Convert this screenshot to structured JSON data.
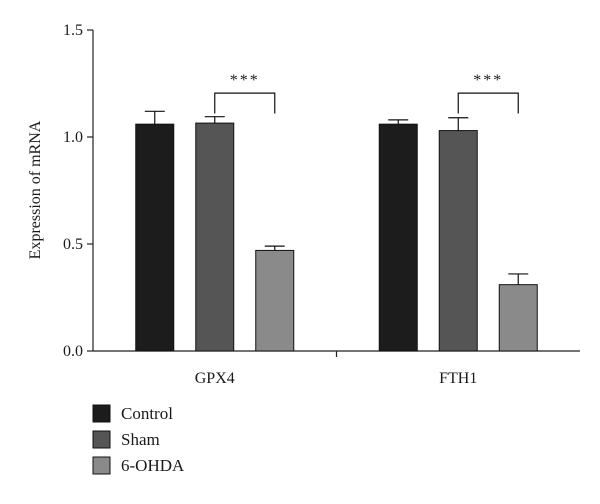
{
  "chart_data": {
    "type": "bar",
    "title": "",
    "xlabel": "",
    "ylabel": "Expression of mRNA",
    "ylim": [
      0.0,
      1.5
    ],
    "yticks": [
      "0.0",
      "0.5",
      "1.0",
      "1.5"
    ],
    "categories": [
      "GPX4",
      "FTH1"
    ],
    "series": [
      {
        "name": "Control",
        "color": "#1c1c1c",
        "values": [
          1.06,
          1.06
        ],
        "errors": [
          0.06,
          0.02
        ]
      },
      {
        "name": "Sham",
        "color": "#555555",
        "values": [
          1.065,
          1.03
        ],
        "errors": [
          0.03,
          0.06
        ]
      },
      {
        "name": "6-OHDA",
        "color": "#8a8a8a",
        "values": [
          0.47,
          0.31
        ],
        "errors": [
          0.02,
          0.05
        ]
      }
    ],
    "annotations": [
      {
        "text": "***",
        "category": "GPX4",
        "from_series": "Sham",
        "to_series": "6-OHDA"
      },
      {
        "text": "***",
        "category": "FTH1",
        "from_series": "Sham",
        "to_series": "6-OHDA"
      }
    ],
    "legend_position": "bottom-left"
  }
}
